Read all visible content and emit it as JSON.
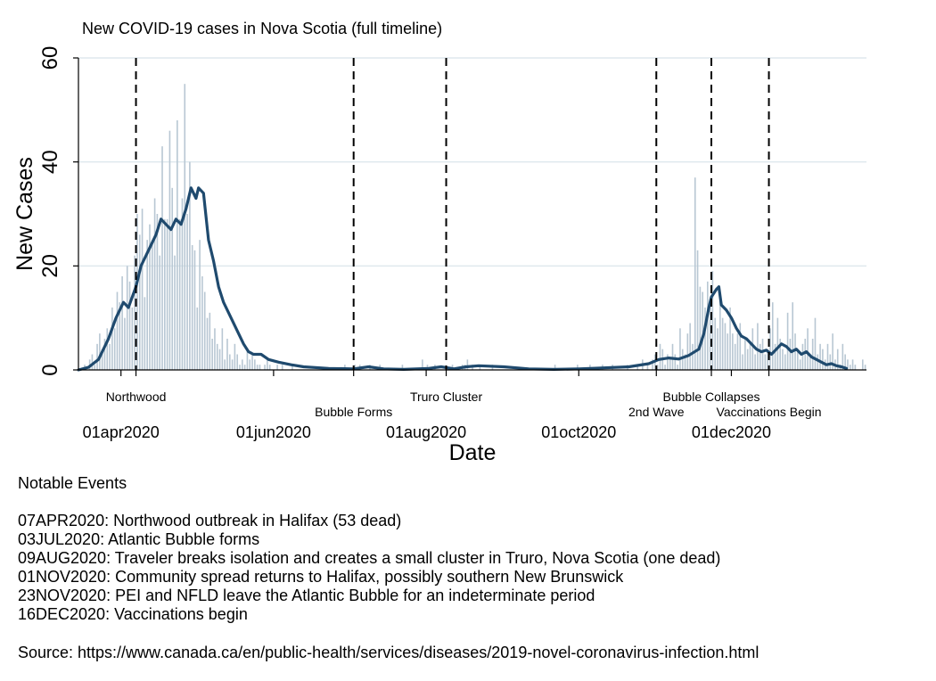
{
  "chart_data": {
    "type": "bar",
    "title": "New COVID-19 cases in Nova Scotia (full timeline)",
    "xlabel": "Date",
    "ylabel": "New Cases",
    "ylim": [
      0,
      60
    ],
    "yticks": [
      0,
      20,
      40,
      60
    ],
    "x_start": "2020-03-15",
    "x_end": "2021-01-24",
    "xticks": [
      {
        "date": "2020-04-01",
        "label": "01apr2020"
      },
      {
        "date": "2020-06-01",
        "label": "01jun2020"
      },
      {
        "date": "2020-08-01",
        "label": "01aug2020"
      },
      {
        "date": "2020-10-01",
        "label": "01oct2020"
      },
      {
        "date": "2020-12-01",
        "label": "01dec2020"
      }
    ],
    "grid": true,
    "colors": {
      "bars": "#b8c7d3",
      "line": "#1f4a6e",
      "grid": "#dfe9ee",
      "events": "#000000"
    },
    "series": [
      {
        "type": "bar",
        "daily": [
          0,
          0,
          1,
          0,
          2,
          3,
          1,
          5,
          7,
          4,
          6,
          8,
          5,
          12,
          8,
          15,
          13,
          18,
          10,
          20,
          17,
          12,
          22,
          30,
          26,
          31,
          14,
          25,
          28,
          25,
          33,
          30,
          22,
          43,
          29,
          29,
          46,
          35,
          22,
          48,
          29,
          33,
          55,
          30,
          40,
          24,
          23,
          12,
          25,
          18,
          15,
          10,
          11,
          6,
          8,
          5,
          4,
          8,
          2,
          6,
          3,
          2,
          5,
          3,
          1,
          2,
          1,
          4,
          2,
          3,
          2,
          1,
          1,
          0,
          1,
          2,
          1,
          0,
          0,
          1,
          0,
          1,
          0,
          0,
          0,
          1,
          0,
          0,
          0,
          0,
          0,
          0,
          0,
          0,
          0,
          0,
          0,
          0,
          0,
          0,
          0,
          0,
          0,
          0,
          0,
          0,
          1,
          0,
          0,
          0,
          1,
          0,
          1,
          0,
          0,
          0,
          1,
          0,
          0,
          0,
          1,
          0,
          0,
          0,
          0,
          0,
          0,
          0,
          0,
          1,
          0,
          0,
          0,
          0,
          0,
          0,
          0,
          2,
          0,
          1,
          0,
          0,
          1,
          0,
          0,
          0,
          0,
          0,
          0,
          1,
          0,
          0,
          0,
          1,
          1,
          2,
          0,
          1,
          0,
          0,
          1,
          0,
          0,
          0,
          0,
          1,
          0,
          0,
          0,
          0,
          0,
          0,
          0,
          0,
          0,
          0,
          0,
          0,
          0,
          0,
          0,
          0,
          0,
          0,
          0,
          0,
          0,
          0,
          0,
          0,
          1,
          0,
          0,
          0,
          0,
          0,
          0,
          0,
          0,
          1,
          0,
          0,
          0,
          0,
          1,
          0,
          0,
          0,
          0,
          1,
          0,
          0,
          0,
          1,
          0,
          0,
          0,
          0,
          0,
          1,
          0,
          0,
          0,
          1,
          0,
          2,
          0,
          1,
          0,
          2,
          3,
          1,
          5,
          4,
          1,
          3,
          2,
          5,
          3,
          1,
          8,
          4,
          3,
          7,
          9,
          5,
          37,
          23,
          16,
          15,
          12,
          17,
          13,
          19,
          10,
          8,
          14,
          10,
          9,
          7,
          12,
          7,
          5,
          7,
          9,
          3,
          6,
          4,
          5,
          8,
          3,
          9,
          5,
          6,
          3,
          4,
          8,
          13,
          5,
          10,
          6,
          4,
          3,
          11,
          6,
          13,
          7,
          4,
          2,
          5,
          6,
          8,
          3,
          6,
          10,
          3,
          5,
          4,
          2,
          5,
          3,
          7,
          2,
          4,
          1,
          5,
          3,
          2,
          1,
          2,
          1,
          0,
          0,
          2,
          1,
          0
        ]
      },
      {
        "type": "line",
        "knots": [
          [
            0,
            0
          ],
          [
            4,
            0.5
          ],
          [
            8,
            2
          ],
          [
            12,
            6
          ],
          [
            15,
            10
          ],
          [
            18,
            13
          ],
          [
            20,
            12
          ],
          [
            23,
            16
          ],
          [
            25,
            20
          ],
          [
            27,
            22
          ],
          [
            29,
            24
          ],
          [
            31,
            26
          ],
          [
            33,
            29
          ],
          [
            35,
            28
          ],
          [
            37,
            27
          ],
          [
            39,
            29
          ],
          [
            41,
            28
          ],
          [
            43,
            31
          ],
          [
            45,
            35
          ],
          [
            47,
            33
          ],
          [
            48,
            35
          ],
          [
            50,
            34
          ],
          [
            52,
            25
          ],
          [
            54,
            21
          ],
          [
            56,
            16
          ],
          [
            58,
            13
          ],
          [
            60,
            11
          ],
          [
            63,
            8
          ],
          [
            66,
            5
          ],
          [
            68,
            3.5
          ],
          [
            70,
            3
          ],
          [
            73,
            3
          ],
          [
            76,
            2
          ],
          [
            80,
            1.5
          ],
          [
            85,
            1
          ],
          [
            90,
            0.6
          ],
          [
            100,
            0.3
          ],
          [
            110,
            0.2
          ],
          [
            116,
            0.6
          ],
          [
            122,
            0.2
          ],
          [
            130,
            0.1
          ],
          [
            140,
            0.3
          ],
          [
            145,
            0.6
          ],
          [
            150,
            0.2
          ],
          [
            155,
            0.6
          ],
          [
            160,
            0.8
          ],
          [
            170,
            0.6
          ],
          [
            180,
            0.2
          ],
          [
            190,
            0.1
          ],
          [
            200,
            0.2
          ],
          [
            210,
            0.4
          ],
          [
            220,
            0.6
          ],
          [
            228,
            1.2
          ],
          [
            232,
            2
          ],
          [
            236,
            2.3
          ],
          [
            240,
            2.1
          ],
          [
            244,
            2.8
          ],
          [
            248,
            4
          ],
          [
            250,
            7
          ],
          [
            252,
            12
          ],
          [
            253,
            14
          ],
          [
            255,
            15.5
          ],
          [
            256,
            16
          ],
          [
            257,
            12.5
          ],
          [
            259,
            11.5
          ],
          [
            261,
            10
          ],
          [
            263,
            8
          ],
          [
            265,
            6.5
          ],
          [
            267,
            6
          ],
          [
            269,
            5
          ],
          [
            271,
            4
          ],
          [
            273,
            3.5
          ],
          [
            275,
            3.8
          ],
          [
            277,
            3
          ],
          [
            279,
            4
          ],
          [
            281,
            5
          ],
          [
            283,
            4.5
          ],
          [
            285,
            3.5
          ],
          [
            287,
            4
          ],
          [
            289,
            3
          ],
          [
            291,
            3.5
          ],
          [
            293,
            2.5
          ],
          [
            295,
            2
          ],
          [
            297,
            1.5
          ],
          [
            299,
            1
          ],
          [
            301,
            1.2
          ],
          [
            303,
            0.8
          ],
          [
            305,
            0.6
          ],
          [
            307,
            0.3
          ]
        ]
      }
    ],
    "events": [
      {
        "date": "2020-04-07",
        "label": "Northwood",
        "row": 1
      },
      {
        "date": "2020-07-03",
        "label": "Bubble Forms",
        "row": 2
      },
      {
        "date": "2020-08-09",
        "label": "Truro Cluster",
        "row": 1
      },
      {
        "date": "2020-11-01",
        "label": "2nd Wave",
        "row": 2
      },
      {
        "date": "2020-11-23",
        "label": "Bubble Collapses",
        "row": 1
      },
      {
        "date": "2020-12-16",
        "label": "Vaccinations Begin",
        "row": 2
      }
    ]
  },
  "notes": {
    "title": "Notable Events",
    "events": [
      "07APR2020: Northwood outbreak in Halifax (53 dead)",
      "03JUL2020: Atlantic Bubble forms",
      "09AUG2020: Traveler breaks isolation and creates a small cluster in Truro, Nova Scotia (one dead)",
      "01NOV2020: Community spread returns to Halifax, possibly southern New Brunswick",
      "23NOV2020: PEI and NFLD leave the Atlantic Bubble for an indeterminate period",
      "16DEC2020: Vaccinations begin"
    ],
    "source": "Source: https://www.canada.ca/en/public-health/services/diseases/2019-novel-coronavirus-infection.html"
  }
}
